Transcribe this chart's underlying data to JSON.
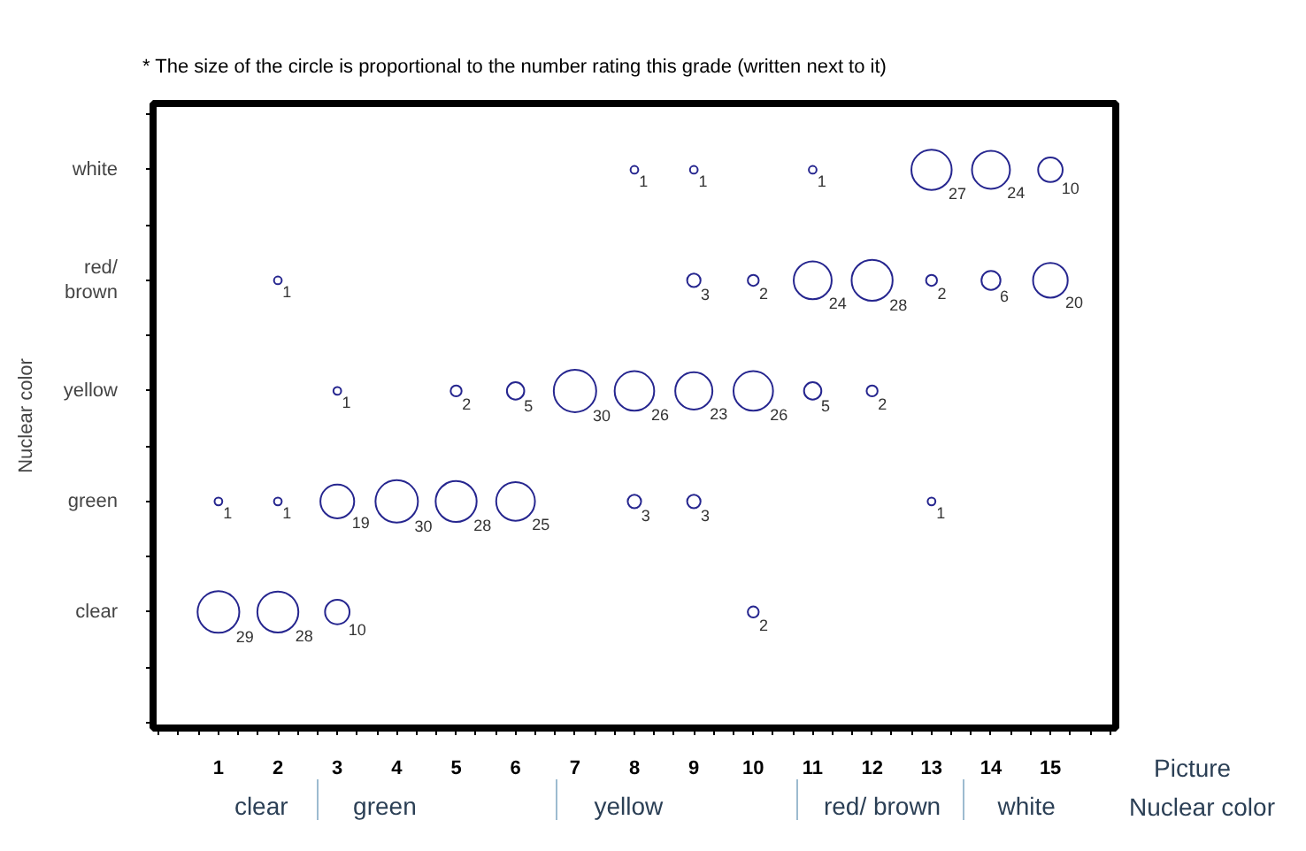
{
  "chart_data": {
    "type": "bubble",
    "orientation": "horizontal",
    "annotations": [
      "* The size of the circle is proportional to the number rating this grade (written next to it)",
      "clear",
      "green",
      "yellow",
      "red/ brown",
      "white"
    ],
    "xlabel": "Picture",
    "x2label": "Nuclear color",
    "ylabel": "Nuclear color",
    "categories": [
      "white",
      "red/ brown",
      "yellow",
      "green",
      "clear"
    ],
    "color": "#26268f",
    "marker": "circle",
    "series": [
      {
        "values": [
          null,
          null,
          null,
          1,
          1
        ],
        "sizes": [
          null,
          null,
          null,
          1,
          29
        ],
        "value_labels": [
          null,
          null,
          null,
          "1",
          "29"
        ]
      },
      {
        "values": [
          null,
          2,
          null,
          2,
          2
        ],
        "sizes": [
          null,
          1,
          null,
          1,
          28
        ],
        "value_labels": [
          null,
          "1",
          null,
          "1",
          "28"
        ]
      },
      {
        "values": [
          null,
          null,
          3,
          3,
          3
        ],
        "sizes": [
          null,
          null,
          1,
          19,
          10
        ],
        "value_labels": [
          null,
          null,
          "1",
          "19",
          "10"
        ]
      },
      {
        "values": [
          null,
          null,
          null,
          4,
          null
        ],
        "sizes": [
          null,
          null,
          null,
          30,
          null
        ],
        "value_labels": [
          null,
          null,
          null,
          "30",
          null
        ]
      },
      {
        "values": [
          null,
          null,
          5,
          5,
          null
        ],
        "sizes": [
          null,
          null,
          2,
          28,
          null
        ],
        "value_labels": [
          null,
          null,
          "2",
          "28",
          null
        ]
      },
      {
        "values": [
          null,
          null,
          6,
          6,
          null
        ],
        "sizes": [
          null,
          null,
          5,
          25,
          null
        ],
        "value_labels": [
          null,
          null,
          "5",
          "25",
          null
        ]
      },
      {
        "values": [
          null,
          null,
          7,
          null,
          null
        ],
        "sizes": [
          null,
          null,
          30,
          null,
          null
        ],
        "value_labels": [
          null,
          null,
          "30",
          null,
          null
        ]
      },
      {
        "values": [
          8,
          null,
          8,
          8,
          null
        ],
        "sizes": [
          1,
          null,
          26,
          3,
          null
        ],
        "value_labels": [
          "1",
          null,
          "26",
          "3",
          null
        ]
      },
      {
        "values": [
          9,
          9,
          9,
          9,
          null
        ],
        "sizes": [
          1,
          3,
          23,
          3,
          null
        ],
        "value_labels": [
          "1",
          "3",
          "23",
          "3",
          null
        ]
      },
      {
        "values": [
          null,
          10,
          10,
          null,
          10
        ],
        "sizes": [
          null,
          2,
          26,
          null,
          2
        ],
        "value_labels": [
          null,
          "2",
          "26",
          null,
          "2"
        ]
      },
      {
        "values": [
          11,
          11,
          11,
          null,
          null
        ],
        "sizes": [
          1,
          24,
          5,
          null,
          null
        ],
        "value_labels": [
          "1",
          "24",
          "5",
          null,
          null
        ]
      },
      {
        "values": [
          null,
          12,
          12,
          null,
          null
        ],
        "sizes": [
          null,
          28,
          2,
          null,
          null
        ],
        "value_labels": [
          null,
          "28",
          "2",
          null,
          null
        ]
      },
      {
        "values": [
          13,
          13,
          null,
          13,
          null
        ],
        "sizes": [
          27,
          2,
          null,
          1,
          null
        ],
        "value_labels": [
          "27",
          "2",
          null,
          "1",
          null
        ]
      },
      {
        "values": [
          14,
          14,
          null,
          null,
          null
        ],
        "sizes": [
          24,
          6,
          null,
          null,
          null
        ],
        "value_labels": [
          "24",
          "6",
          null,
          null,
          null
        ]
      },
      {
        "values": [
          15,
          15,
          null,
          null,
          null
        ],
        "sizes": [
          10,
          20,
          null,
          null,
          null
        ],
        "value_labels": [
          "10",
          "20",
          null,
          null,
          null
        ]
      }
    ],
    "xlim": [
      -0.1,
      16.1
    ],
    "xticks": [
      {
        "value": 0,
        "label": null
      },
      {
        "value": 0.33,
        "label": null
      },
      {
        "value": 0.67,
        "label": null
      },
      1,
      {
        "value": 1.33,
        "label": null
      },
      {
        "value": 1.67,
        "label": null
      },
      2,
      {
        "value": 2.33,
        "label": null
      },
      {
        "value": 2.67,
        "label": null
      },
      3,
      {
        "value": 3.33,
        "label": null
      },
      {
        "value": 3.67,
        "label": null
      },
      4,
      {
        "value": 4.33,
        "label": null
      },
      {
        "value": 4.67,
        "label": null
      },
      5,
      {
        "value": 5.33,
        "label": null
      },
      {
        "value": 5.67,
        "label": null
      },
      6,
      {
        "value": 6.33,
        "label": null
      },
      {
        "value": 6.67,
        "label": null
      },
      7,
      {
        "value": 7.33,
        "label": null
      },
      {
        "value": 7.67,
        "label": null
      },
      8,
      {
        "value": 8.33,
        "label": null
      },
      {
        "value": 8.67,
        "label": null
      },
      9,
      {
        "value": 9.33,
        "label": null
      },
      {
        "value": 9.67,
        "label": null
      },
      10,
      {
        "value": 10.33,
        "label": null
      },
      {
        "value": 10.67,
        "label": null
      },
      11,
      {
        "value": 11.33,
        "label": null
      },
      {
        "value": 11.67,
        "label": null
      },
      12,
      {
        "value": 12.33,
        "label": null
      },
      {
        "value": 12.67,
        "label": null
      },
      13,
      {
        "value": 13.33,
        "label": null
      },
      {
        "value": 13.67,
        "label": null
      },
      14,
      {
        "value": 14.33,
        "label": null
      },
      {
        "value": 14.67,
        "label": null
      },
      15,
      {
        "value": 15.33,
        "label": null
      },
      {
        "value": 15.67,
        "label": null
      },
      {
        "value": 16,
        "label": null
      }
    ]
  }
}
